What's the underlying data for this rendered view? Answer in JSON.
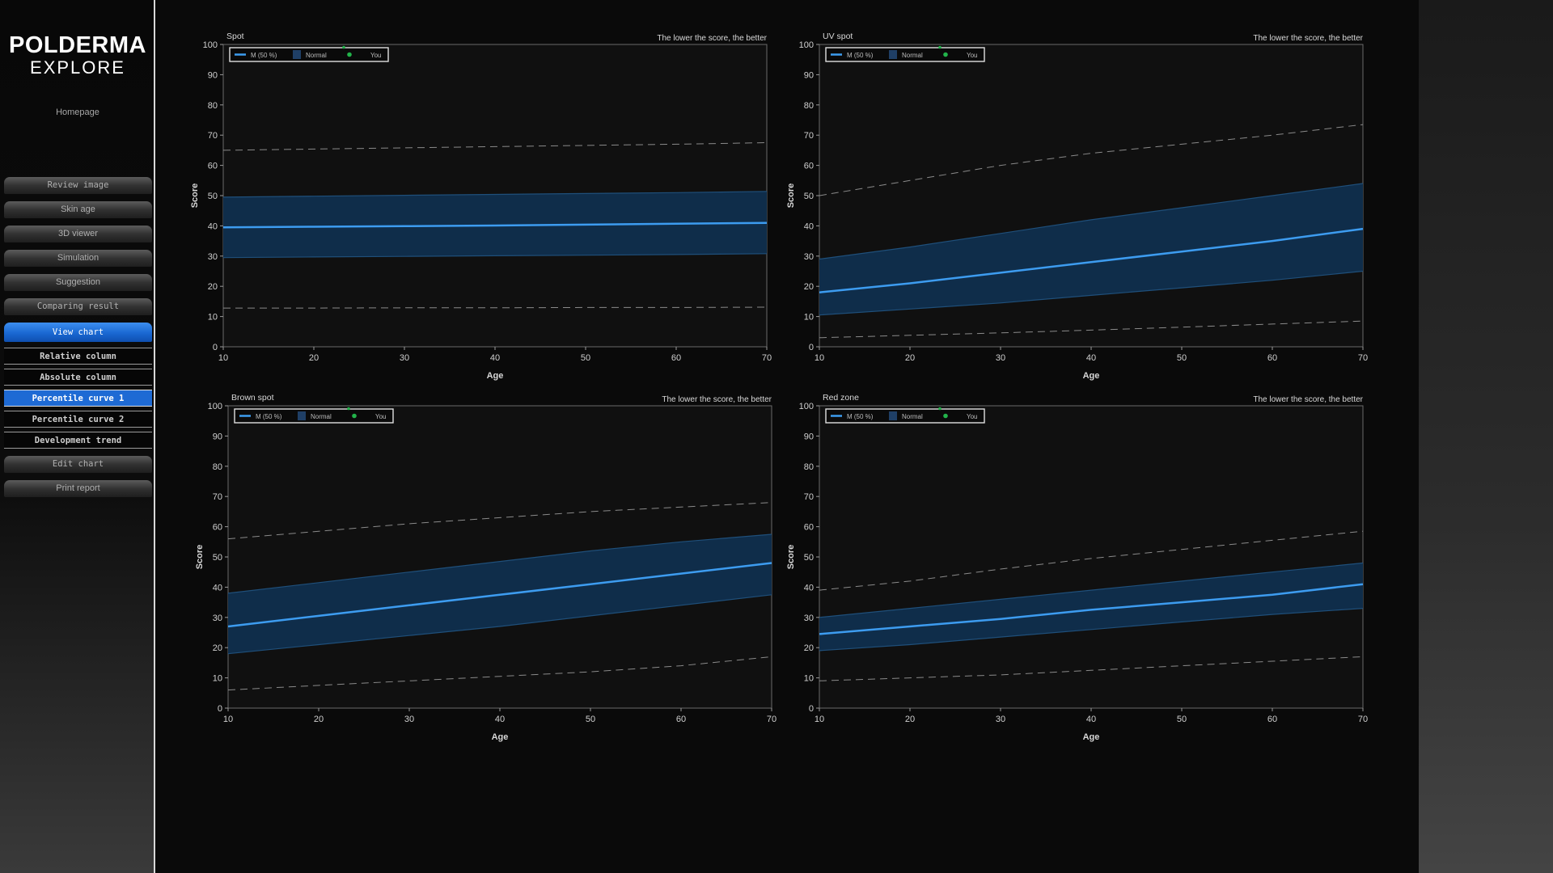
{
  "app": {
    "logo_main": "POLDERMA",
    "logo_sub": "EXPLORE",
    "home_label": "Homepage"
  },
  "colors": {
    "accent": "#1e6ad4",
    "median_line": "#3d9cf0",
    "normal_band": "#0f2d4a",
    "band_edge": "#1f4f7a",
    "dashed_line": "#8a8a8a",
    "you_marker": "#22b34a"
  },
  "sidebar": {
    "items": [
      {
        "label": "Review image"
      },
      {
        "label": "Skin age"
      },
      {
        "label": "3D viewer"
      },
      {
        "label": "Simulation"
      },
      {
        "label": "Suggestion"
      },
      {
        "label": "Comparing result"
      },
      {
        "label": "View chart"
      },
      {
        "label": "Relative column"
      },
      {
        "label": "Absolute column"
      },
      {
        "label": "Percentile curve 1"
      },
      {
        "label": "Percentile curve 2"
      },
      {
        "label": "Development trend"
      },
      {
        "label": "Edit chart"
      },
      {
        "label": "Print report"
      }
    ]
  },
  "chart_data": [
    {
      "type": "line",
      "title": "Spot",
      "note": "The lower the score, the better",
      "xlabel": "Age",
      "ylabel": "Score",
      "xlim": [
        10,
        70
      ],
      "ylim": [
        0,
        100
      ],
      "xticks": [
        "10",
        "20",
        "30",
        "40",
        "50",
        "60",
        "70"
      ],
      "yticks": [
        "0",
        "10",
        "20",
        "30",
        "40",
        "50",
        "60",
        "70",
        "80",
        "90",
        "100"
      ],
      "legend": [
        {
          "name": "M  (50 %)"
        },
        {
          "name": "Normal"
        },
        {
          "name": "You"
        }
      ],
      "x": [
        10,
        20,
        30,
        40,
        50,
        60,
        70
      ],
      "series": [
        {
          "role": "median",
          "values": [
            39.5,
            39.7,
            39.9,
            40.1,
            40.4,
            40.7,
            41.0
          ]
        },
        {
          "role": "band_upper",
          "values": [
            49.5,
            49.8,
            50.1,
            50.4,
            50.7,
            51.0,
            51.4
          ]
        },
        {
          "role": "band_lower",
          "values": [
            29.5,
            29.7,
            29.9,
            30.1,
            30.3,
            30.5,
            30.8
          ]
        },
        {
          "role": "dash_upper",
          "values": [
            65.0,
            65.4,
            65.8,
            66.2,
            66.6,
            67.0,
            67.5
          ]
        },
        {
          "role": "dash_lower",
          "values": [
            12.8,
            12.8,
            12.9,
            12.9,
            13.0,
            13.0,
            13.1
          ]
        }
      ]
    },
    {
      "type": "line",
      "title": "UV spot",
      "note": "The lower the score, the better",
      "xlabel": "Age",
      "ylabel": "Score",
      "xlim": [
        10,
        70
      ],
      "ylim": [
        0,
        100
      ],
      "xticks": [
        "10",
        "20",
        "30",
        "40",
        "50",
        "60",
        "70"
      ],
      "yticks": [
        "0",
        "10",
        "20",
        "30",
        "40",
        "50",
        "60",
        "70",
        "80",
        "90",
        "100"
      ],
      "legend": [
        {
          "name": "M  (50 %)"
        },
        {
          "name": "Normal"
        },
        {
          "name": "You"
        }
      ],
      "x": [
        10,
        20,
        30,
        40,
        50,
        60,
        70
      ],
      "series": [
        {
          "role": "median",
          "values": [
            18.0,
            21.0,
            24.5,
            28.0,
            31.5,
            35.0,
            39.0
          ]
        },
        {
          "role": "band_upper",
          "values": [
            29.0,
            33.0,
            37.5,
            42.0,
            46.0,
            50.0,
            54.0
          ]
        },
        {
          "role": "band_lower",
          "values": [
            10.5,
            12.5,
            14.5,
            17.0,
            19.5,
            22.0,
            25.0
          ]
        },
        {
          "role": "dash_upper",
          "values": [
            50.0,
            55.0,
            60.0,
            64.0,
            67.0,
            70.0,
            73.5
          ]
        },
        {
          "role": "dash_lower",
          "values": [
            3.0,
            3.8,
            4.6,
            5.5,
            6.5,
            7.5,
            8.5
          ]
        }
      ]
    },
    {
      "type": "line",
      "title": "Brown spot",
      "note": "The lower the score, the better",
      "xlabel": "Age",
      "ylabel": "Score",
      "xlim": [
        10,
        70
      ],
      "ylim": [
        0,
        100
      ],
      "xticks": [
        "10",
        "20",
        "30",
        "40",
        "50",
        "60",
        "70"
      ],
      "yticks": [
        "0",
        "10",
        "20",
        "30",
        "40",
        "50",
        "60",
        "70",
        "80",
        "90",
        "100"
      ],
      "legend": [
        {
          "name": "M  (50 %)"
        },
        {
          "name": "Normal"
        },
        {
          "name": "You"
        }
      ],
      "x": [
        10,
        20,
        30,
        40,
        50,
        60,
        70
      ],
      "series": [
        {
          "role": "median",
          "values": [
            27.0,
            30.5,
            34.0,
            37.5,
            41.0,
            44.5,
            48.0
          ]
        },
        {
          "role": "band_upper",
          "values": [
            38.0,
            41.5,
            45.0,
            48.5,
            52.0,
            55.0,
            57.5
          ]
        },
        {
          "role": "band_lower",
          "values": [
            18.0,
            21.0,
            24.0,
            27.0,
            30.5,
            34.0,
            37.5
          ]
        },
        {
          "role": "dash_upper",
          "values": [
            56.0,
            58.5,
            61.0,
            63.0,
            65.0,
            66.5,
            68.0
          ]
        },
        {
          "role": "dash_lower",
          "values": [
            6.0,
            7.5,
            9.0,
            10.5,
            12.0,
            14.0,
            17.0
          ]
        }
      ]
    },
    {
      "type": "line",
      "title": "Red zone",
      "note": "The lower the score, the better",
      "xlabel": "Age",
      "ylabel": "Score",
      "xlim": [
        10,
        70
      ],
      "ylim": [
        0,
        100
      ],
      "xticks": [
        "10",
        "20",
        "30",
        "40",
        "50",
        "60",
        "70"
      ],
      "yticks": [
        "0",
        "10",
        "20",
        "30",
        "40",
        "50",
        "60",
        "70",
        "80",
        "90",
        "100"
      ],
      "legend": [
        {
          "name": "M  (50 %)"
        },
        {
          "name": "Normal"
        },
        {
          "name": "You"
        }
      ],
      "x": [
        10,
        20,
        30,
        40,
        50,
        60,
        70
      ],
      "series": [
        {
          "role": "median",
          "values": [
            24.5,
            27.0,
            29.5,
            32.5,
            35.0,
            37.5,
            41.0
          ]
        },
        {
          "role": "band_upper",
          "values": [
            30.0,
            33.0,
            36.0,
            39.0,
            42.0,
            45.0,
            48.0
          ]
        },
        {
          "role": "band_lower",
          "values": [
            19.0,
            21.0,
            23.5,
            26.0,
            28.5,
            31.0,
            33.0
          ]
        },
        {
          "role": "dash_upper",
          "values": [
            39.0,
            42.0,
            46.0,
            49.5,
            52.5,
            55.5,
            58.5
          ]
        },
        {
          "role": "dash_lower",
          "values": [
            9.0,
            10.0,
            11.0,
            12.5,
            14.0,
            15.5,
            17.0
          ]
        }
      ]
    }
  ]
}
